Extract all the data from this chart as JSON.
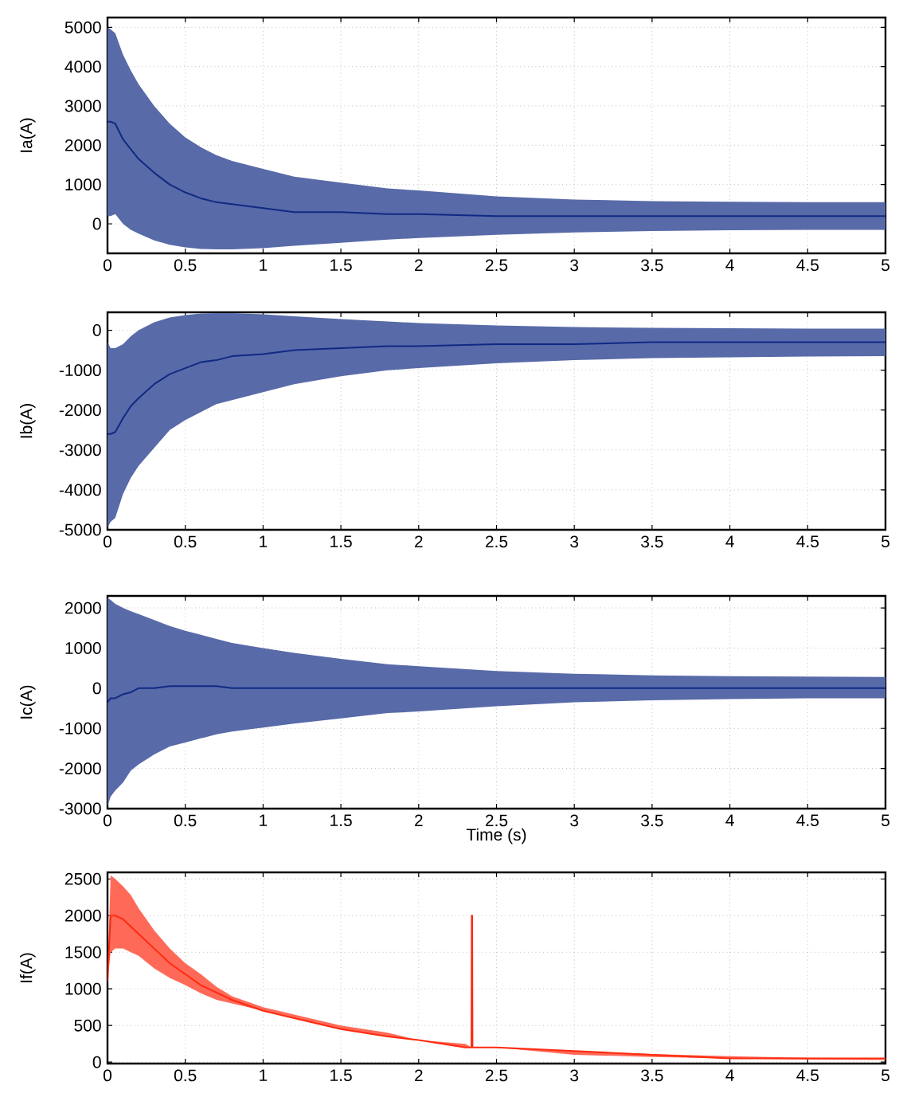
{
  "chart_data": [
    {
      "type": "line",
      "ylabel": "Ia(A)",
      "xlim": [
        0,
        5
      ],
      "ylim": [
        -750,
        5250
      ],
      "xticks": [
        0,
        0.5,
        1,
        1.5,
        2,
        2.5,
        3,
        3.5,
        4,
        4.5,
        5
      ],
      "yticks": [
        0,
        1000,
        2000,
        3000,
        4000,
        5000
      ],
      "grid": true,
      "x": [
        0,
        0.02,
        0.05,
        0.1,
        0.15,
        0.2,
        0.3,
        0.4,
        0.5,
        0.6,
        0.7,
        0.8,
        1.0,
        1.2,
        1.5,
        1.8,
        2.0,
        2.5,
        3,
        3.5,
        4,
        4.5,
        5
      ],
      "series": [
        {
          "color": "#102a83",
          "values": [
            2600,
            2600,
            2550,
            2150,
            1900,
            1650,
            1300,
            1000,
            800,
            650,
            550,
            500,
            400,
            300,
            300,
            250,
            250,
            200,
            200,
            200,
            200,
            200,
            200
          ],
          "upper": [
            5000,
            4950,
            4850,
            4300,
            3900,
            3550,
            3000,
            2550,
            2200,
            1950,
            1750,
            1600,
            1400,
            1200,
            1050,
            900,
            850,
            700,
            620,
            580,
            560,
            550,
            550
          ],
          "lower": [
            200,
            200,
            250,
            0,
            -150,
            -250,
            -420,
            -530,
            -600,
            -640,
            -650,
            -650,
            -620,
            -560,
            -480,
            -400,
            -360,
            -280,
            -220,
            -180,
            -160,
            -150,
            -150
          ]
        }
      ]
    },
    {
      "type": "line",
      "ylabel": "Ib(A)",
      "xlim": [
        0,
        5
      ],
      "ylim": [
        -5000,
        450
      ],
      "xticks": [
        0,
        0.5,
        1,
        1.5,
        2,
        2.5,
        3,
        3.5,
        4,
        4.5,
        5
      ],
      "yticks": [
        -5000,
        -4000,
        -3000,
        -2000,
        -1000,
        0
      ],
      "grid": true,
      "x": [
        0,
        0.02,
        0.05,
        0.1,
        0.15,
        0.2,
        0.3,
        0.4,
        0.5,
        0.6,
        0.7,
        0.8,
        1.0,
        1.2,
        1.5,
        1.8,
        2.0,
        2.5,
        3,
        3.5,
        4,
        4.5,
        5
      ],
      "series": [
        {
          "color": "#102a83",
          "values": [
            -2600,
            -2600,
            -2550,
            -2200,
            -1900,
            -1700,
            -1350,
            -1100,
            -950,
            -800,
            -750,
            -650,
            -600,
            -500,
            -450,
            -400,
            -400,
            -350,
            -350,
            -300,
            -300,
            -300,
            -300
          ],
          "upper": [
            -300,
            -450,
            -450,
            -350,
            -150,
            0,
            200,
            320,
            380,
            420,
            430,
            430,
            400,
            350,
            280,
            220,
            180,
            120,
            80,
            60,
            50,
            40,
            40
          ],
          "lower": [
            -4950,
            -4800,
            -4700,
            -4100,
            -3700,
            -3400,
            -2950,
            -2500,
            -2250,
            -2050,
            -1850,
            -1750,
            -1550,
            -1350,
            -1150,
            -1000,
            -950,
            -830,
            -750,
            -700,
            -680,
            -660,
            -650
          ]
        }
      ]
    },
    {
      "type": "line",
      "ylabel": "Ic(A)",
      "xlabel": "Time (s)",
      "xlim": [
        0,
        5
      ],
      "ylim": [
        -3000,
        2300
      ],
      "xticks": [
        0,
        0.5,
        1,
        1.5,
        2,
        2.5,
        3,
        3.5,
        4,
        4.5,
        5
      ],
      "yticks": [
        -3000,
        -2000,
        -1000,
        0,
        1000,
        2000
      ],
      "grid": true,
      "x": [
        0,
        0.02,
        0.05,
        0.1,
        0.15,
        0.2,
        0.3,
        0.4,
        0.5,
        0.6,
        0.7,
        0.8,
        1.0,
        1.2,
        1.5,
        1.8,
        2.0,
        2.5,
        3,
        3.5,
        4,
        4.5,
        5
      ],
      "series": [
        {
          "color": "#102a83",
          "values": [
            -350,
            -250,
            -250,
            -150,
            -100,
            0,
            0,
            50,
            50,
            50,
            50,
            0,
            0,
            0,
            0,
            0,
            0,
            0,
            0,
            0,
            0,
            0,
            0
          ],
          "upper": [
            2250,
            2200,
            2100,
            2000,
            1920,
            1850,
            1700,
            1550,
            1430,
            1330,
            1230,
            1130,
            1000,
            880,
            730,
            600,
            550,
            430,
            360,
            320,
            300,
            290,
            280
          ],
          "lower": [
            -2950,
            -2700,
            -2550,
            -2350,
            -2050,
            -1900,
            -1650,
            -1450,
            -1350,
            -1250,
            -1150,
            -1080,
            -980,
            -880,
            -750,
            -620,
            -580,
            -450,
            -350,
            -300,
            -270,
            -250,
            -250
          ]
        }
      ]
    },
    {
      "type": "line",
      "ylabel": "If(A)",
      "xlim": [
        0,
        5
      ],
      "ylim": [
        -20,
        2590
      ],
      "xticks": [
        0,
        0.5,
        1,
        1.5,
        2,
        2.5,
        3,
        3.5,
        4,
        4.5,
        5
      ],
      "yticks": [
        0,
        500,
        1000,
        1500,
        2000,
        2500
      ],
      "grid": true,
      "x": [
        0,
        0.02,
        0.05,
        0.1,
        0.15,
        0.2,
        0.3,
        0.4,
        0.5,
        0.6,
        0.7,
        0.8,
        1.0,
        1.2,
        1.5,
        1.8,
        2.0,
        2.3,
        2.339,
        2.341,
        2.344,
        2.346,
        2.5,
        3,
        3.5,
        4,
        4.5,
        5
      ],
      "series": [
        {
          "color": "#ff2a10",
          "values": [
            1100,
            2000,
            2000,
            1950,
            1850,
            1750,
            1550,
            1350,
            1200,
            1050,
            950,
            850,
            700,
            600,
            450,
            350,
            300,
            200,
            200,
            2000,
            2000,
            200,
            200,
            150,
            100,
            50,
            50,
            50
          ],
          "upper": [
            1100,
            2550,
            2500,
            2400,
            2280,
            2100,
            1800,
            1550,
            1350,
            1200,
            1030,
            900,
            750,
            650,
            500,
            400,
            300,
            250,
            200,
            2000,
            2000,
            200,
            200,
            150,
            110,
            80,
            60,
            50
          ],
          "lower": [
            1100,
            1500,
            1550,
            1550,
            1500,
            1450,
            1280,
            1150,
            1050,
            940,
            850,
            800,
            700,
            600,
            450,
            350,
            300,
            200,
            200,
            2000,
            2000,
            200,
            200,
            100,
            70,
            50,
            35,
            30
          ]
        }
      ]
    }
  ]
}
